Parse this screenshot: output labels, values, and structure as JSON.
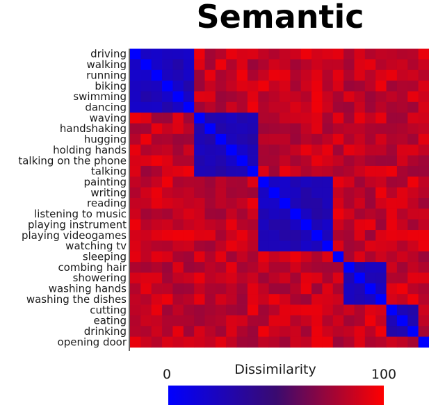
{
  "chart_data": {
    "type": "heatmap",
    "title": "Semantic",
    "labels": [
      "driving",
      "walking",
      "running",
      "biking",
      "swimming",
      "dancing",
      "waving",
      "handshaking",
      "hugging",
      "holding hands",
      "talking on the phone",
      "talking",
      "painting",
      "writing",
      "reading",
      "listening to music",
      "playing instrument",
      "playing videogames",
      "watching tv",
      "sleeping",
      "combing hair",
      "showering",
      "washing hands",
      "washing the dishes",
      "cutting",
      "eating",
      "drinking",
      "opening door"
    ],
    "groups": [
      {
        "name": "",
        "start": 0,
        "end": 5
      },
      {
        "name": "",
        "start": 6,
        "end": 11
      },
      {
        "name": "",
        "start": 12,
        "end": 18
      },
      {
        "name": "",
        "start": 19,
        "end": 19
      },
      {
        "name": "",
        "start": 20,
        "end": 23
      },
      {
        "name": "",
        "start": 24,
        "end": 26
      },
      {
        "name": "",
        "start": 27,
        "end": 27
      }
    ],
    "value_range": [
      0,
      100
    ],
    "diagonal_value": 0,
    "within_group_value": 25,
    "between_group_value": 85,
    "colorbar": {
      "label": "Dissimilarity",
      "min_label": "0",
      "max_label": "100",
      "colors": [
        "#0000ff",
        "#3a0a70",
        "#ff0000"
      ]
    }
  }
}
